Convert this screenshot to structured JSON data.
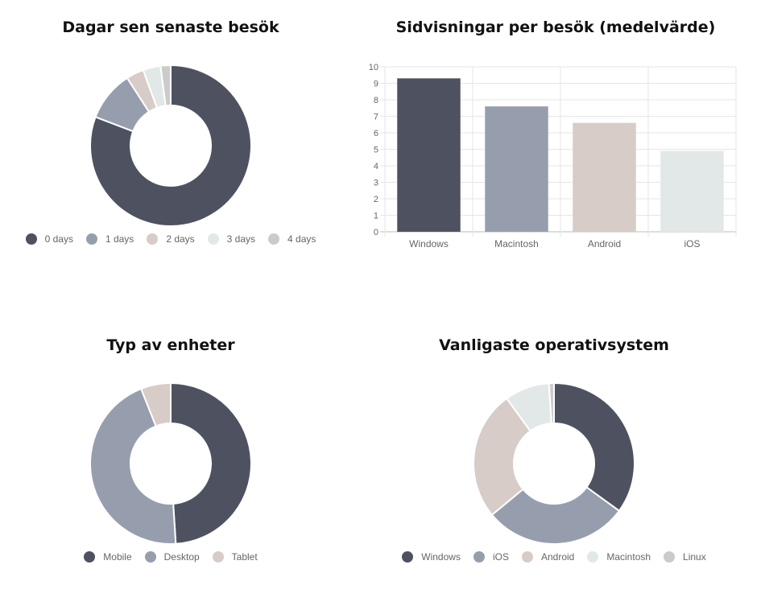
{
  "palette": [
    "#4e5260",
    "#969eae",
    "#d7ccc7",
    "#e2e8e8",
    "#cbcbcb"
  ],
  "chart_data": [
    {
      "type": "pie",
      "variant": "doughnut",
      "title": "Dagar sen senaste besök",
      "labels": [
        "0 days",
        "1 days",
        "2 days",
        "3 days",
        "4 days"
      ],
      "values": [
        80,
        10,
        3.5,
        3.5,
        2
      ],
      "legend": "bottom"
    },
    {
      "type": "bar",
      "title": "Sidvisningar per besök (medelvärde)",
      "categories": [
        "Windows",
        "Macintosh",
        "Android",
        "iOS"
      ],
      "values": [
        9.3,
        7.6,
        6.6,
        4.9
      ],
      "ylim": [
        0,
        10
      ],
      "yticks": [
        "0",
        "1",
        "2",
        "3",
        "4",
        "5",
        "6",
        "7",
        "8",
        "9",
        "10"
      ],
      "grid": true,
      "legend": "none"
    },
    {
      "type": "pie",
      "variant": "doughnut",
      "title": "Typ av enheter",
      "labels": [
        "Mobile",
        "Desktop",
        "Tablet"
      ],
      "values": [
        49,
        45,
        6
      ],
      "legend": "bottom"
    },
    {
      "type": "pie",
      "variant": "doughnut",
      "title": "Vanligaste operativsystem",
      "labels": [
        "Windows",
        "iOS",
        "Android",
        "Macintosh",
        "Linux"
      ],
      "values": [
        35,
        29,
        26,
        9,
        1
      ],
      "legend": "bottom"
    }
  ]
}
